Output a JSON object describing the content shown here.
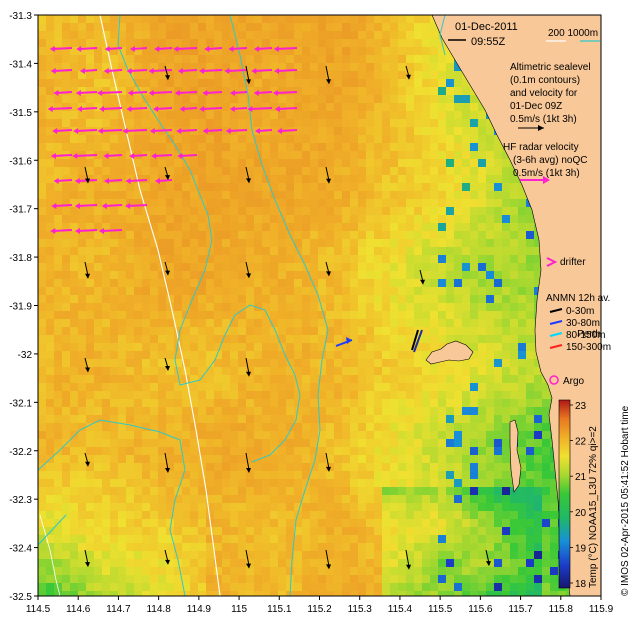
{
  "map": {
    "date": "01-Dec-2011",
    "time": "09:55Z",
    "scale_label": "200 1000m",
    "altimetry_lines": [
      "Altimetric sealevel",
      "(0.1m contours)",
      "and velocity for",
      "01-Dec 09Z",
      "0.5m/s (1kt 3h)"
    ],
    "hf_radar_lines": [
      "HF radar velocity",
      "(3-6h avg) noQC",
      "0.5m/s (1kt 3h)"
    ],
    "drifter_label": "drifter",
    "anmn_title": "ANMN 12h av.",
    "anmn_depths": [
      {
        "label": "0-30m",
        "color": "#000000"
      },
      {
        "label": "30-80m",
        "color": "#1a3cff"
      },
      {
        "label": "80-150m",
        "color": "#00d8ff"
      },
      {
        "label": "150-300m",
        "color": "#ff2020"
      }
    ],
    "perth_label": "Perth",
    "argo_label": "Argo",
    "colorbar": {
      "title": "Temp (°C) NOAA15_L3U 72% qi>=2",
      "ticks": [
        "23",
        "22",
        "21",
        "20",
        "19",
        "18"
      ]
    },
    "credit": "© IMOS 02-Apr-2015 05:41:52 Hobart time",
    "lon_ticks": [
      "114.5",
      "114.6",
      "114.7",
      "114.8",
      "114.9",
      "115",
      "115.1",
      "115.2",
      "115.3",
      "115.4",
      "115.5",
      "115.6",
      "115.7",
      "115.8",
      "115.9"
    ],
    "lat_ticks": [
      "-31.3",
      "-31.4",
      "-31.5",
      "-31.6",
      "-31.7",
      "-31.8",
      "-31.9",
      "-32",
      "-32.1",
      "-32.2",
      "-32.3",
      "-32.4",
      "-32.5"
    ],
    "colors": {
      "land": "#f8c898",
      "radar_arrow": "#ff20d0",
      "contour": "#30c8c8",
      "isobath": "#ffffff"
    }
  }
}
